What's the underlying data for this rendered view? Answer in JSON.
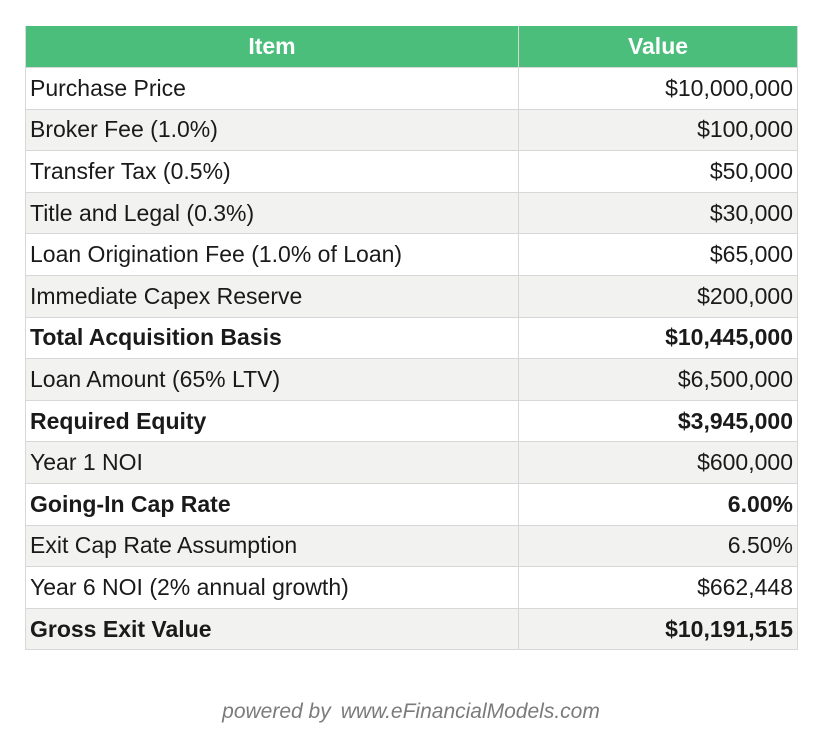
{
  "table": {
    "headers": [
      "Item",
      "Value"
    ],
    "rows": [
      {
        "item": "Purchase Price",
        "value": "$10,000,000",
        "bold": false
      },
      {
        "item": "Broker Fee (1.0%)",
        "value": "$100,000",
        "bold": false
      },
      {
        "item": "Transfer Tax (0.5%)",
        "value": "$50,000",
        "bold": false
      },
      {
        "item": "Title and Legal (0.3%)",
        "value": "$30,000",
        "bold": false
      },
      {
        "item": "Loan Origination Fee (1.0% of Loan)",
        "value": "$65,000",
        "bold": false
      },
      {
        "item": "Immediate Capex Reserve",
        "value": "$200,000",
        "bold": false
      },
      {
        "item": "Total Acquisition Basis",
        "value": "$10,445,000",
        "bold": true
      },
      {
        "item": "Loan Amount (65% LTV)",
        "value": "$6,500,000",
        "bold": false
      },
      {
        "item": "Required Equity",
        "value": "$3,945,000",
        "bold": true
      },
      {
        "item": "Year 1 NOI",
        "value": "$600,000",
        "bold": false
      },
      {
        "item": "Going-In Cap Rate",
        "value": "6.00%",
        "bold": true
      },
      {
        "item": "Exit Cap Rate Assumption",
        "value": "6.50%",
        "bold": false
      },
      {
        "item": "Year 6 NOI (2% annual growth)",
        "value": "$662,448",
        "bold": false
      },
      {
        "item": "Gross Exit Value",
        "value": "$10,191,515",
        "bold": true
      }
    ]
  },
  "colors": {
    "header_bg": "#4bbe7b",
    "header_text": "#ffffff",
    "row_alt_bg": "#f2f2f0",
    "footer_text": "#7b7b7b"
  },
  "footer": {
    "powered_label": "powered by",
    "url": "www.eFinancialModels.com"
  }
}
